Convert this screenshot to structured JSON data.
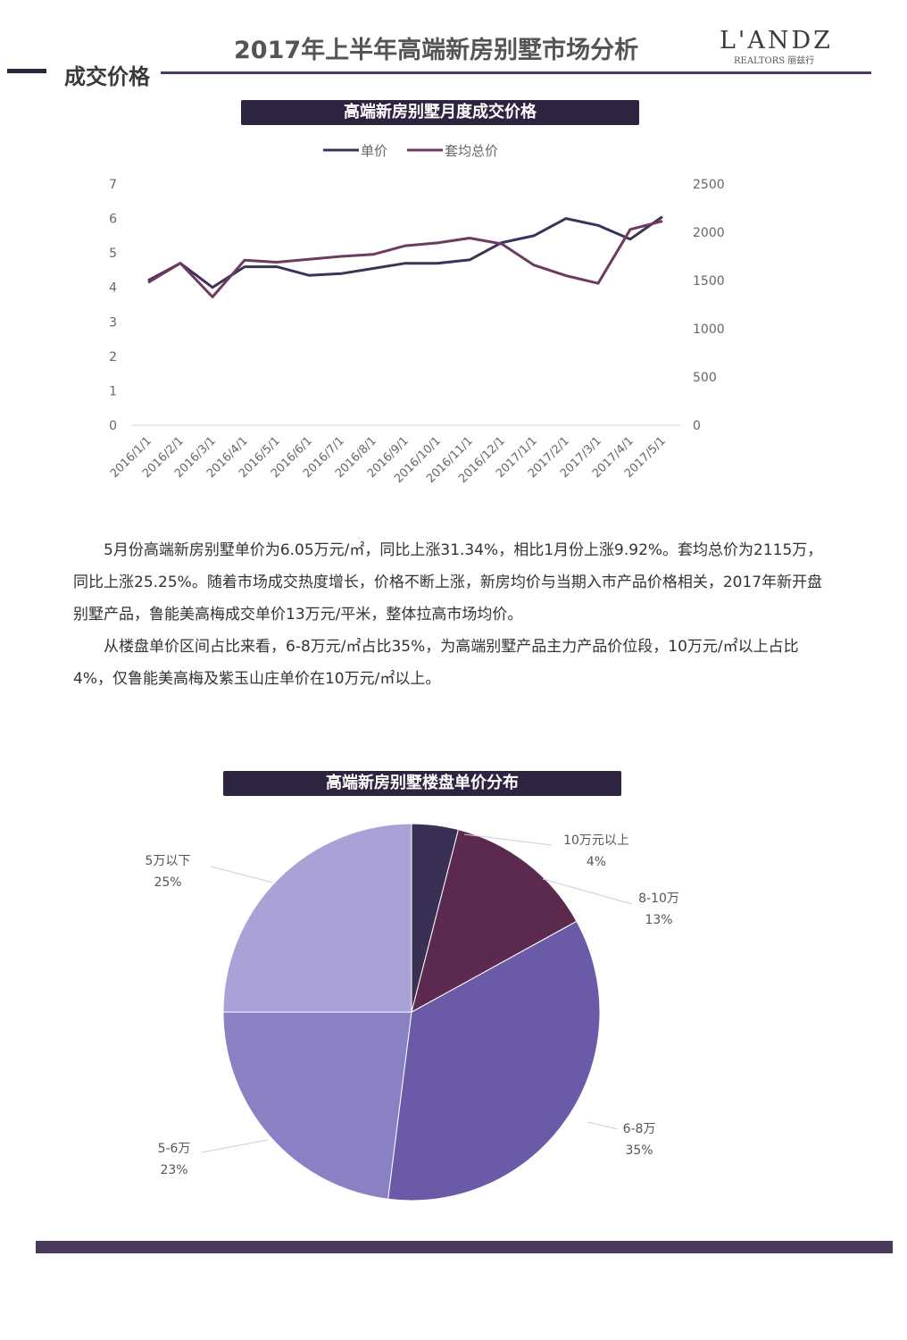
{
  "header": {
    "title": "2017年上半年高端新房别墅市场分析",
    "logo_main": "L'ANDZ",
    "logo_sub": "REALTORS 丽兹行"
  },
  "section": {
    "title": "成交价格"
  },
  "line_chart": {
    "title": "高端新房别墅月度成交价格",
    "legend": [
      "单价",
      "套均总价"
    ]
  },
  "body": {
    "para1": "5月份高端新房别墅单价为6.05万元/㎡，同比上涨31.34%，相比1月份上涨9.92%。套均总价为2115万，同比上涨25.25%。随着市场成交热度增长，价格不断上涨，新房均价与当期入市产品价格相关，2017年新开盘别墅产品，鲁能美高梅成交单价13万元/平米，整体拉高市场均价。",
    "para2": "从楼盘单价区间占比来看，6-8万元/㎡占比35%，为高端别墅产品主力产品价位段，10万元/㎡以上占比4%，仅鲁能美高梅及紫玉山庄单价在10万元/㎡以上。"
  },
  "pie_chart": {
    "title": "高端新房别墅楼盘单价分布"
  },
  "colors": {
    "dark": "#2e2440",
    "line_unit": "#3d3358",
    "line_total": "#6e3b5e",
    "pie": [
      "#3a2f55",
      "#5b2a4e",
      "#6a5aa8",
      "#8a80c4",
      "#a9a2d6"
    ]
  },
  "chart_data": [
    {
      "type": "line",
      "title": "高端新房别墅月度成交价格",
      "x": [
        "2016/1/1",
        "2016/2/1",
        "2016/3/1",
        "2016/4/1",
        "2016/5/1",
        "2016/6/1",
        "2016/7/1",
        "2016/8/1",
        "2016/9/1",
        "2016/10/1",
        "2016/11/1",
        "2016/12/1",
        "2017/1/1",
        "2017/2/1",
        "2017/3/1",
        "2017/4/1",
        "2017/5/1"
      ],
      "y_left_ticks": [
        "0",
        "1",
        "2",
        "3",
        "4",
        "5",
        "6",
        "7"
      ],
      "y_right_ticks": [
        "0",
        "500",
        "1000",
        "1500",
        "2000",
        "2500"
      ],
      "ylim_left": [
        0,
        7
      ],
      "ylim_right": [
        0,
        2500
      ],
      "legend_position": "top",
      "grid": false,
      "series": [
        {
          "name": "单价",
          "axis": "left",
          "values": [
            4.2,
            4.7,
            4.0,
            4.6,
            4.6,
            4.35,
            4.4,
            4.55,
            4.7,
            4.7,
            4.8,
            5.3,
            5.5,
            6.0,
            5.8,
            5.4,
            6.05
          ]
        },
        {
          "name": "套均总价",
          "axis": "right",
          "values": [
            1480,
            1680,
            1330,
            1710,
            1690,
            1720,
            1750,
            1770,
            1860,
            1890,
            1940,
            1880,
            1660,
            1550,
            1470,
            2030,
            2115
          ]
        }
      ]
    },
    {
      "type": "pie",
      "title": "高端新房别墅楼盘单价分布",
      "slices": [
        {
          "label": "10万元以上",
          "value": 4,
          "text": "4%"
        },
        {
          "label": "8-10万",
          "value": 13,
          "text": "13%"
        },
        {
          "label": "6-8万",
          "value": 35,
          "text": "35%"
        },
        {
          "label": "5-6万",
          "value": 23,
          "text": "23%"
        },
        {
          "label": "5万以下",
          "value": 25,
          "text": "25%"
        }
      ]
    }
  ]
}
